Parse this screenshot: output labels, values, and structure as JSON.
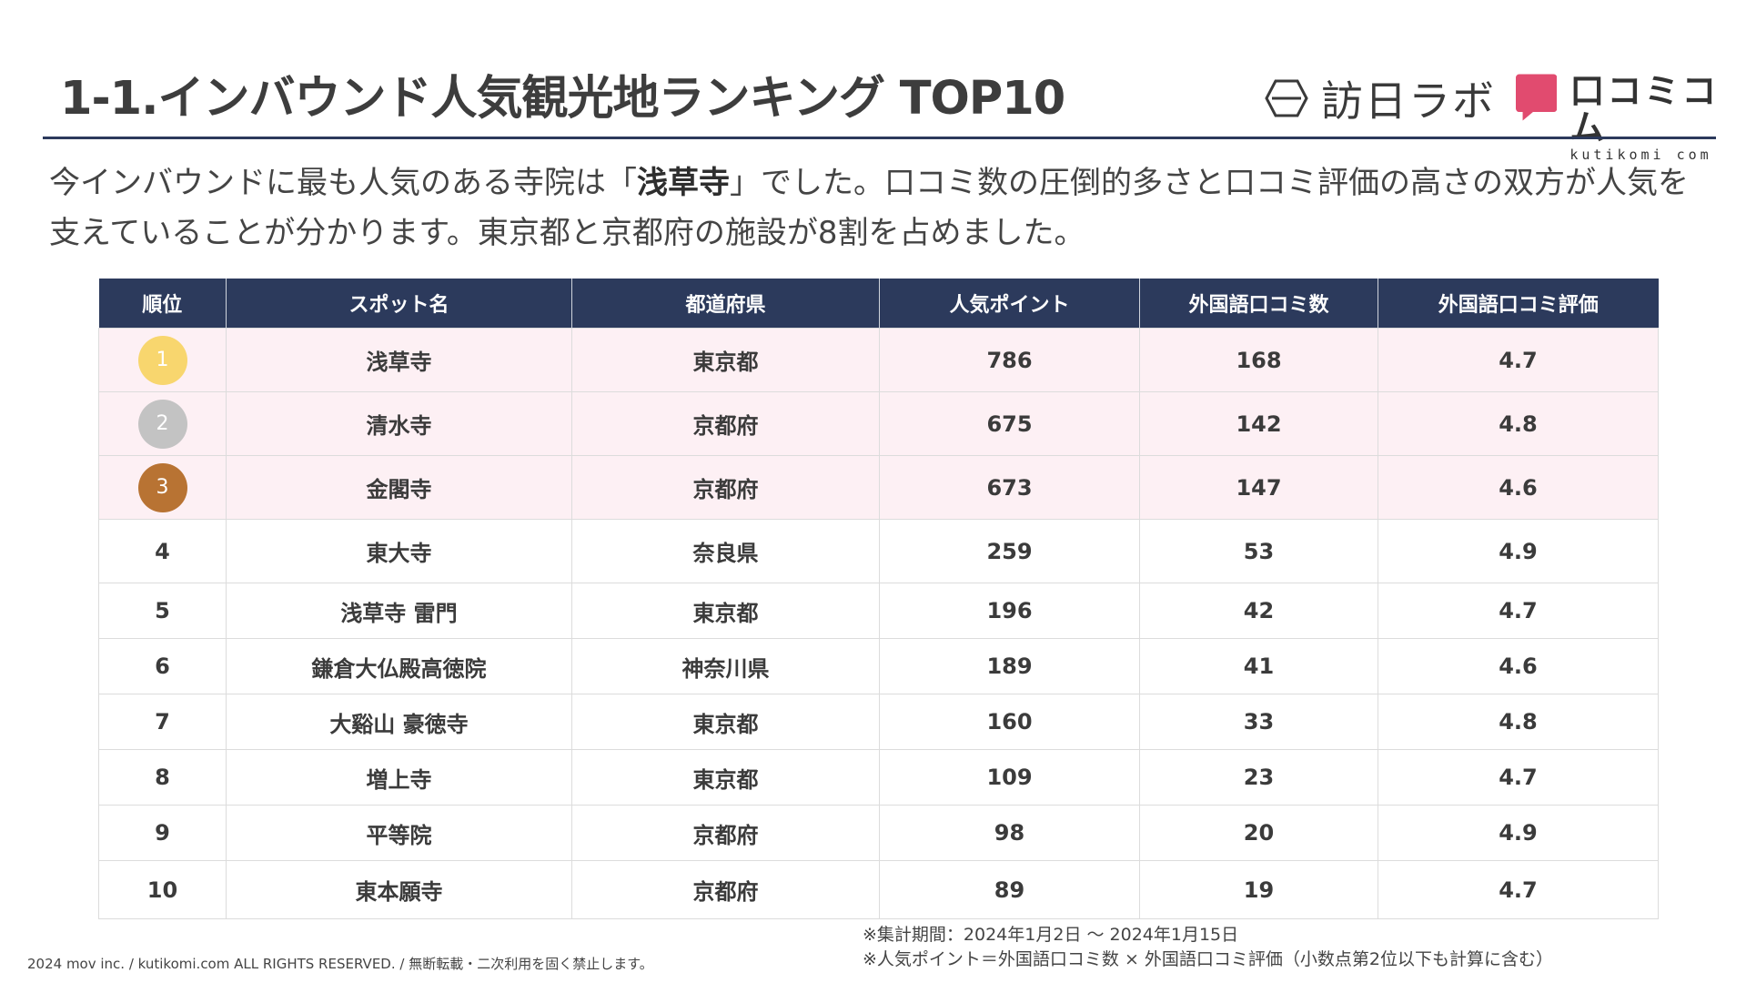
{
  "header": {
    "title": "1-1.インバウンド人気観光地ランキング TOP10",
    "logo_houjin": "訪日ラボ",
    "logo_kutikomi_main": "口コミコム",
    "logo_kutikomi_sub": "kutikomi com"
  },
  "description": {
    "part1": "今インバウンドに最も人気のある寺院は「",
    "highlight": "浅草寺",
    "part2": "」でした。口コミ数の圧倒的多さと口コミ評価の高さの双方が人気を支えていることが分かります。東京都と京都府の施設が8割を占めました。"
  },
  "table": {
    "headers": [
      "順位",
      "スポット名",
      "都道府県",
      "人気ポイント",
      "外国語口コミ数",
      "外国語口コミ評価"
    ],
    "rows": [
      {
        "rank": "1",
        "spot": "浅草寺",
        "pref": "東京都",
        "points": "786",
        "reviews": "168",
        "rating": "4.7"
      },
      {
        "rank": "2",
        "spot": "清水寺",
        "pref": "京都府",
        "points": "675",
        "reviews": "142",
        "rating": "4.8"
      },
      {
        "rank": "3",
        "spot": "金閣寺",
        "pref": "京都府",
        "points": "673",
        "reviews": "147",
        "rating": "4.6"
      },
      {
        "rank": "4",
        "spot": "東大寺",
        "pref": "奈良県",
        "points": "259",
        "reviews": "53",
        "rating": "4.9"
      },
      {
        "rank": "5",
        "spot": "浅草寺 雷門",
        "pref": "東京都",
        "points": "196",
        "reviews": "42",
        "rating": "4.7"
      },
      {
        "rank": "6",
        "spot": "鎌倉大仏殿高徳院",
        "pref": "神奈川県",
        "points": "189",
        "reviews": "41",
        "rating": "4.6"
      },
      {
        "rank": "7",
        "spot": "大谿山 豪徳寺",
        "pref": "東京都",
        "points": "160",
        "reviews": "33",
        "rating": "4.8"
      },
      {
        "rank": "8",
        "spot": "増上寺",
        "pref": "東京都",
        "points": "109",
        "reviews": "23",
        "rating": "4.7"
      },
      {
        "rank": "9",
        "spot": "平等院",
        "pref": "京都府",
        "points": "98",
        "reviews": "20",
        "rating": "4.9"
      },
      {
        "rank": "10",
        "spot": "東本願寺",
        "pref": "京都府",
        "points": "89",
        "reviews": "19",
        "rating": "4.7"
      }
    ]
  },
  "medal_colors": {
    "gold": "#f8d66e",
    "silver": "#c3c3c3",
    "bronze": "#b87333"
  },
  "notes": {
    "period": "※集計期間：2024年1月2日 ～ 2024年1月15日",
    "formula": "※人気ポイント＝外国語口コミ数 × 外国語口コミ評価（小数点第2位以下も計算に含む）"
  },
  "footer": {
    "copyright": "2024 mov inc. / kutikomi.com ALL RIGHTS RESERVED. / 無断転載・二次利用を固く禁止します。"
  }
}
